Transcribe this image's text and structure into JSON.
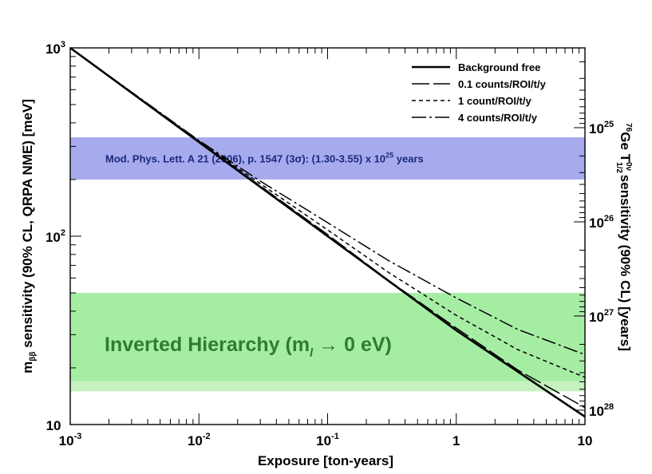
{
  "chart_data": {
    "type": "line",
    "xlabel": "Exposure [ton-years]",
    "ylabel_main": "sensitivity (90% CL, QRPA NME) [meV]",
    "ylabel_symbol": "m",
    "ylabel_symbol_sub": "ββ",
    "y2label": {
      "sup": "76",
      "prefix": "Ge T",
      "t_sub": "1/2",
      "t_sup": "0ν",
      "suffix": " sensitivity (90% CL) [years]"
    },
    "x_scale": "log",
    "y_scale": "log",
    "xlim": [
      0.001,
      10
    ],
    "ylim": [
      10,
      1000
    ],
    "x_tick_labels": [
      {
        "value": 0.001,
        "base": "10",
        "exp": "-3"
      },
      {
        "value": 0.01,
        "base": "10",
        "exp": "-2"
      },
      {
        "value": 0.1,
        "base": "10",
        "exp": "-1"
      },
      {
        "value": 1,
        "base": "1",
        "exp": ""
      },
      {
        "value": 10,
        "base": "10",
        "exp": ""
      }
    ],
    "y_tick_labels": [
      {
        "value": 10,
        "base": "10",
        "exp": ""
      },
      {
        "value": 100,
        "base": "10",
        "exp": "2"
      },
      {
        "value": 1000,
        "base": "10",
        "exp": "3"
      }
    ],
    "y2_tick_labels": [
      {
        "value": 1e+25,
        "base": "10",
        "exp": "25"
      },
      {
        "value": 1e+26,
        "base": "10",
        "exp": "26"
      },
      {
        "value": 1e+27,
        "base": "10",
        "exp": "27"
      },
      {
        "value": 1e+28,
        "base": "10",
        "exp": "28"
      }
    ],
    "y2_mapping_note": "",
    "bands": [
      {
        "y_low": 200,
        "y_high": 335,
        "color": "#a8aaee",
        "label": "Mod. Phys. Lett. A 21 (2006), p. 1547 (3σ): (1.30-3.55) x 10",
        "label_sup": "25",
        "label_suffix": " years",
        "label_color": "#1a2a7a"
      },
      {
        "y_low": 15,
        "y_high": 50,
        "color": "#c6f2c0"
      },
      {
        "y_low": 17,
        "y_high": 50,
        "color": "#a6eda4",
        "label": "Inverted Hierarchy (m",
        "label_sub": "l",
        "label_suffix": " → 0 eV)",
        "label_color": "#2e7d2e"
      }
    ],
    "series": [
      {
        "name": "Background free",
        "dash": "",
        "width": 2.6,
        "x": [
          0.001,
          0.01,
          0.1,
          1,
          10
        ],
        "y": [
          1000,
          316,
          100,
          31.6,
          11
        ]
      },
      {
        "name": "0.1 counts/ROI/t/y",
        "dash": "22 5",
        "width": 1.5,
        "x": [
          0.001,
          0.01,
          0.1,
          0.3,
          1,
          3,
          10
        ],
        "y": [
          1000,
          318,
          102,
          58,
          32.5,
          19.5,
          12.3
        ]
      },
      {
        "name": "1 count/ROI/t/y",
        "dash": "5 4",
        "width": 1.5,
        "x": [
          0.001,
          0.01,
          0.03,
          0.1,
          0.3,
          1,
          3,
          10
        ],
        "y": [
          1000,
          320,
          190,
          108,
          64,
          38,
          25,
          17.8
        ]
      },
      {
        "name": "4 counts/ROI/t/y",
        "dash": "18 4 3 4",
        "width": 1.5,
        "x": [
          0.001,
          0.01,
          0.03,
          0.1,
          0.3,
          1,
          3,
          10
        ],
        "y": [
          1000,
          322,
          196,
          118,
          74,
          47,
          32,
          23.5
        ]
      }
    ],
    "legend_position": "top-right",
    "grid": false
  }
}
